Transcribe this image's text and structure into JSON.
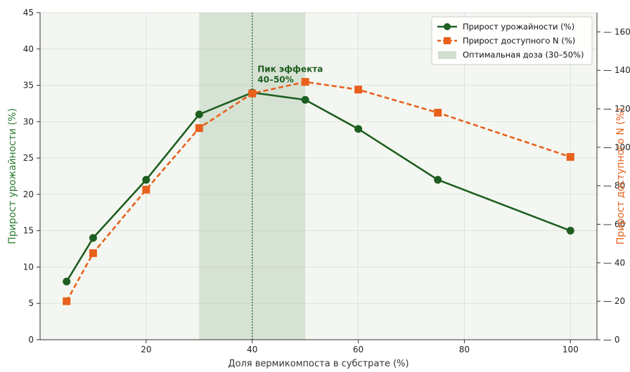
{
  "chart_data": {
    "type": "line",
    "xlabel": "Доля вермикомпоста в субстрате (%)",
    "ylabel_left": "Прирост урожайности (%)",
    "ylabel_right": "Прирост доступного N (%)",
    "xlim": [
      0,
      105
    ],
    "ylim_left": [
      0,
      45
    ],
    "ylim_right": [
      0,
      170
    ],
    "x_ticks": [
      20,
      40,
      60,
      80,
      100
    ],
    "y_left_ticks": [
      0,
      5,
      10,
      15,
      20,
      25,
      30,
      35,
      40,
      45
    ],
    "y_right_ticks": [
      0,
      20,
      40,
      60,
      80,
      100,
      120,
      140,
      160
    ],
    "grid": true,
    "legend_position": "top-right",
    "series": [
      {
        "name": "Прирост урожайности (%)",
        "axis": "left",
        "color": "#1e5e20",
        "style": "solid",
        "marker": "circle",
        "x": [
          5,
          10,
          20,
          30,
          40,
          50,
          60,
          75,
          100
        ],
        "values": [
          8,
          14,
          22,
          31,
          34,
          33,
          29,
          22,
          15
        ]
      },
      {
        "name": "Прирост доступного N (%)",
        "axis": "right",
        "color": "#e8601c",
        "style": "dashed",
        "marker": "square",
        "x": [
          5,
          10,
          20,
          30,
          40,
          50,
          60,
          75,
          100
        ],
        "values": [
          20,
          45,
          78,
          110,
          128,
          134,
          130,
          118,
          95
        ]
      }
    ],
    "shaded_region": {
      "label": "Оптимальная доза (30–50%)",
      "x_range": [
        30,
        50
      ],
      "color": "#a9c4a9"
    },
    "vertical_line": {
      "x": 40,
      "color": "#1e5e20",
      "style": "dotted"
    },
    "annotation": {
      "lines": [
        "Пик эффекта",
        "40–50%"
      ],
      "x": 41,
      "y": 35.5,
      "color": "#1e5e20"
    }
  },
  "colors": {
    "plot_background": "#f4f7f1",
    "left_axis_color": "#2e7d32",
    "right_axis_color": "#e8601c"
  }
}
